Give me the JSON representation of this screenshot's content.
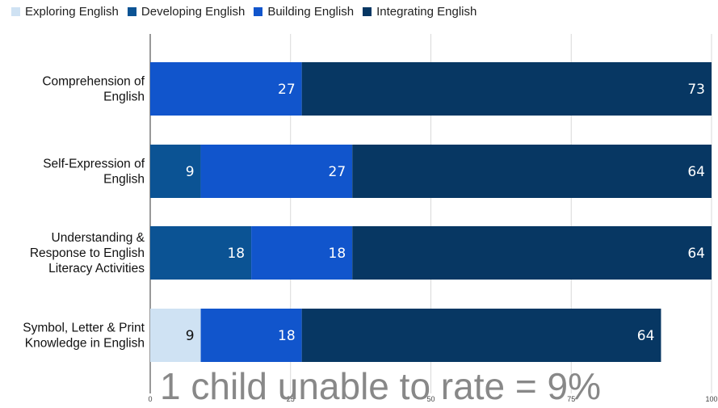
{
  "chart_data": {
    "type": "bar",
    "orientation": "horizontal",
    "stacked": true,
    "categories": [
      "Comprehension of English",
      "Self-Expression of English",
      "Understanding & Response to English Literacy Activities",
      "Symbol, Letter & Print Knowledge in English"
    ],
    "category_lines": [
      [
        "Comprehension of",
        "English"
      ],
      [
        "Self-Expression of",
        "English"
      ],
      [
        "Understanding &",
        "Response to English",
        "Literacy Activities"
      ],
      [
        "Symbol, Letter & Print",
        "Knowledge in English"
      ]
    ],
    "series": [
      {
        "name": "Exploring English",
        "color": "#cfe2f3",
        "values": [
          0,
          0,
          0,
          9
        ]
      },
      {
        "name": "Developing English",
        "color": "#0b5394",
        "values": [
          0,
          9,
          18,
          0
        ]
      },
      {
        "name": "Building English",
        "color": "#1155cc",
        "values": [
          27,
          27,
          18,
          18
        ]
      },
      {
        "name": "Integrating English",
        "color": "#073763",
        "values": [
          73,
          64,
          64,
          64
        ]
      }
    ],
    "xlim": [
      0,
      100
    ],
    "xticks": [
      0,
      25,
      50,
      75,
      100
    ],
    "grid": true,
    "legend_position": "top-left"
  },
  "annotation": "1 child unable to rate = 9%"
}
